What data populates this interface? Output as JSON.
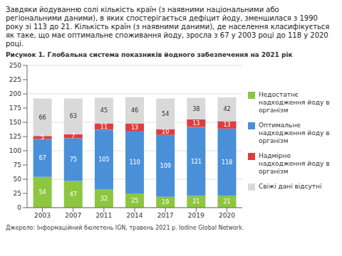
{
  "chart_data": {
    "type": "bar",
    "title": "Завдяки йодуванню солі кількість країн (з наявними національними або регіональними даними), в яких спостерігається дефіцит йоду, зменшилася з 1990 року зі 113 до 21. Кількість країн (з наявними даними), де населення класифікується як таке, що має оптимальне споживання йоду, зросла з 67 у 2003 році до 118 у 2020 році.",
    "subtitle": "Рисунок 1. Глобальна система показників йодного забезпечення на 2021 рік",
    "annotations": [
      "Джерело: Інформаційний бюлетень IGN, травень 2021 р. Iodine Global Network."
    ],
    "categories": [
      "2003",
      "2007",
      "2011",
      "2014",
      "2017",
      "2019",
      "2020"
    ],
    "series": [
      {
        "name": "Недостатнє надходження йоду в організм",
        "color": "#8dc63f",
        "values": [
          54,
          47,
          32,
          25,
          19,
          21,
          21
        ]
      },
      {
        "name": "Оптимальне надходження йоду в організм",
        "color": "#4a90d9",
        "values": [
          67,
          75,
          105,
          110,
          109,
          121,
          118
        ]
      },
      {
        "name": "Надмірне надходження йоду в організм",
        "color": "#e03c3c",
        "values": [
          5,
          7,
          11,
          13,
          10,
          13,
          13
        ]
      },
      {
        "name": "Свіжі дані відсутні",
        "color": "#d9d9d9",
        "values": [
          66,
          63,
          45,
          46,
          54,
          38,
          42
        ]
      }
    ],
    "ylim": [
      0,
      250
    ],
    "yticks": [
      0,
      25,
      50,
      75,
      100,
      125,
      150,
      175,
      200,
      225,
      250
    ],
    "grid": true,
    "stacked": true,
    "data_labels": true,
    "legend": "right"
  }
}
